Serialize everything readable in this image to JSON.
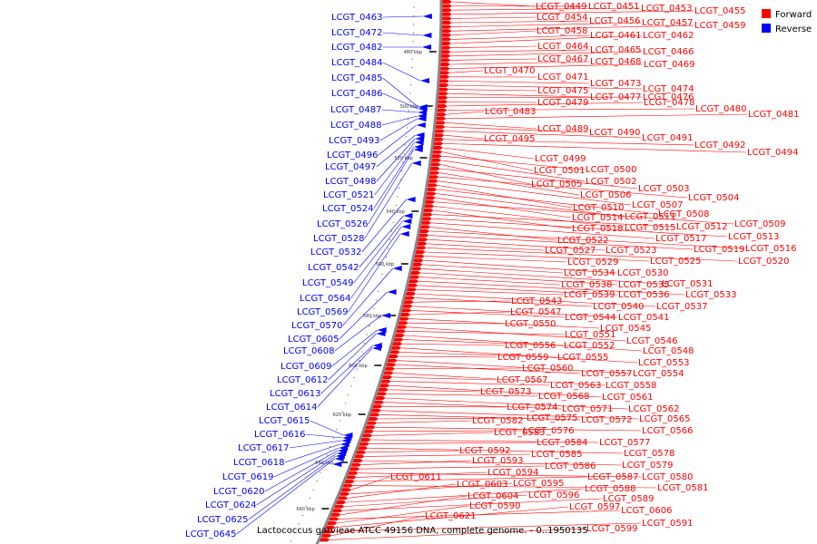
{
  "caption": "Lactococcus garvieae ATCC 49156 DNA, complete genome. - 0..1950135",
  "legend": [
    {
      "label": "Forward",
      "color": "#ff0000"
    },
    {
      "label": "Reverse",
      "color": "#0000ff"
    }
  ],
  "tick_labels": [
    "480 kbp",
    "500 kbp",
    "520 kbp",
    "540 kbp",
    "560 kbp",
    "580 kbp",
    "600 kbp",
    "620 kbp",
    "640 kbp",
    "660 kbp"
  ],
  "reverse_genes": [
    "LCGT_0463",
    "LCGT_0472",
    "LCGT_0482",
    "LCGT_0484",
    "LCGT_0485",
    "LCGT_0486",
    "LCGT_0487",
    "LCGT_0488",
    "LCGT_0493",
    "LCGT_0496",
    "LCGT_0497",
    "LCGT_0498",
    "LCGT_0521",
    "LCGT_0524",
    "LCGT_0526",
    "LCGT_0528",
    "LCGT_0532",
    "LCGT_0542",
    "LCGT_0549",
    "LCGT_0564",
    "LCGT_0569",
    "LCGT_0570",
    "LCGT_0605",
    "LCGT_0608",
    "LCGT_0609",
    "LCGT_0612",
    "LCGT_0613",
    "LCGT_0614",
    "LCGT_0615",
    "LCGT_0616",
    "LCGT_0617",
    "LCGT_0618",
    "LCGT_0619",
    "LCGT_0620",
    "LCGT_0624",
    "LCGT_0625",
    "LCGT_0645"
  ],
  "forward_genes": [
    "LCGT_0449",
    "LCGT_0451",
    "LCGT_0453",
    "LCGT_0455",
    "LCGT_0454",
    "LCGT_0456",
    "LCGT_0457",
    "LCGT_0459",
    "LCGT_0458",
    "LCGT_0461",
    "LCGT_0462",
    "LCGT_0464",
    "LCGT_0465",
    "LCGT_0466",
    "LCGT_0467",
    "LCGT_0468",
    "LCGT_0469",
    "LCGT_0470",
    "LCGT_0471",
    "LCGT_0473",
    "LCGT_0474",
    "LCGT_0475",
    "LCGT_0477",
    "LCGT_0476",
    "LCGT_0479",
    "LCGT_0478",
    "LCGT_0480",
    "LCGT_0483",
    "LCGT_0481",
    "LCGT_0489",
    "LCGT_0490",
    "LCGT_0491",
    "LCGT_0495",
    "LCGT_0492",
    "LCGT_0494",
    "LCGT_0499",
    "LCGT_0501",
    "LCGT_0500",
    "LCGT_0502",
    "LCGT_0505",
    "LCGT_0503",
    "LCGT_0506",
    "LCGT_0504",
    "LCGT_0507",
    "LCGT_0510",
    "LCGT_0508",
    "LCGT_0511",
    "LCGT_0514",
    "LCGT_0509",
    "LCGT_0515",
    "LCGT_0518",
    "LCGT_0512",
    "LCGT_0513",
    "LCGT_0517",
    "LCGT_0522",
    "LCGT_0516",
    "LCGT_0519",
    "LCGT_0523",
    "LCGT_0527",
    "LCGT_0520",
    "LCGT_0525",
    "LCGT_0529",
    "LCGT_0530",
    "LCGT_0534",
    "LCGT_0531",
    "LCGT_0535",
    "LCGT_0538",
    "LCGT_0533",
    "LCGT_0536",
    "LCGT_0539",
    "LCGT_0537",
    "LCGT_0540",
    "LCGT_0543",
    "LCGT_0541",
    "LCGT_0544",
    "LCGT_0547",
    "LCGT_0545",
    "LCGT_0550",
    "LCGT_0546",
    "LCGT_0551",
    "LCGT_0548",
    "LCGT_0552",
    "LCGT_0556",
    "LCGT_0553",
    "LCGT_0555",
    "LCGT_0559",
    "LCGT_0554",
    "LCGT_0557",
    "LCGT_0560",
    "LCGT_0558",
    "LCGT_0567",
    "LCGT_0563",
    "LCGT_0561",
    "LCGT_0573",
    "LCGT_0568",
    "LCGT_0562",
    "LCGT_0571",
    "LCGT_0574",
    "LCGT_0565",
    "LCGT_0572",
    "LCGT_0575",
    "LCGT_0582",
    "LCGT_0566",
    "LCGT_0576",
    "LCGT_0583",
    "LCGT_0577",
    "LCGT_0584",
    "LCGT_0578",
    "LCGT_0592",
    "LCGT_0585",
    "LCGT_0579",
    "LCGT_0593",
    "LCGT_0586",
    "LCGT_0580",
    "LCGT_0594",
    "LCGT_0587",
    "LCGT_0581",
    "LCGT_0611",
    "LCGT_0595",
    "LCGT_0603",
    "LCGT_0588",
    "LCGT_0596",
    "LCGT_0589",
    "LCGT_0604",
    "LCGT_0606",
    "LCGT_0590",
    "LCGT_0597",
    "LCGT_0591",
    "LCGT_0621",
    "LCGT_0599"
  ]
}
